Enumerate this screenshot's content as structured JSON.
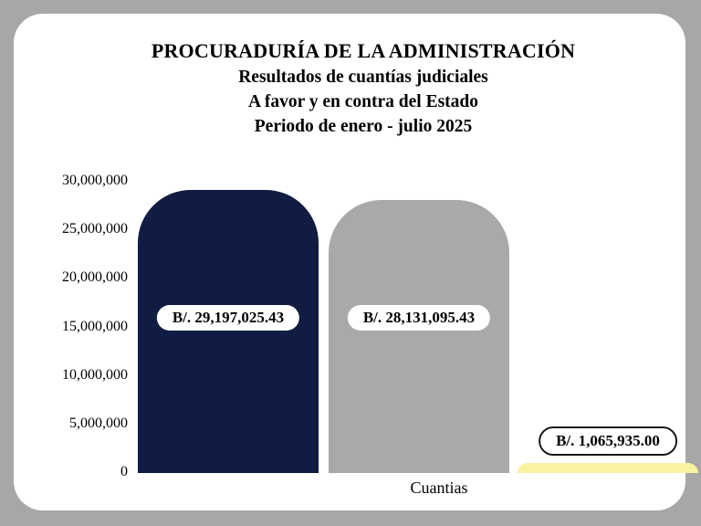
{
  "page": {
    "background_color": "#a7a7a7",
    "card_color": "#ffffff"
  },
  "header": {
    "title": "PROCURADURÍA DE LA ADMINISTRACIÓN",
    "subtitle1": "Resultados de cuantías judiciales",
    "subtitle2": "A favor y en contra del Estado",
    "subtitle3": "Periodo de enero - julio 2025"
  },
  "chart_data": {
    "type": "bar",
    "title": "PROCURADURÍA DE LA ADMINISTRACIÓN - Resultados de cuantías judiciales - A favor y en contra del Estado - Periodo de enero - julio 2025",
    "categories": [
      "Cuantias"
    ],
    "series": [
      {
        "name": "bar-1",
        "color": "#101c41",
        "values": [
          29197025.43
        ],
        "label": "B/. 29,197,025.43"
      },
      {
        "name": "bar-2",
        "color": "#a9a9a9",
        "values": [
          28131095.43
        ],
        "label": "B/. 28,131,095.43"
      },
      {
        "name": "bar-3",
        "color": "#f9f29f",
        "values": [
          1065935.0
        ],
        "label": "B/. 1,065,935.00"
      }
    ],
    "xlabel": "Cuantias",
    "ylabel": "",
    "ylim": [
      0,
      30000000
    ],
    "yticks": [
      "30,000,000",
      "25,000,000",
      "20,000,000",
      "15,000,000",
      "10,000,000",
      "5,000,000",
      "0"
    ],
    "grid": false,
    "legend": false
  }
}
